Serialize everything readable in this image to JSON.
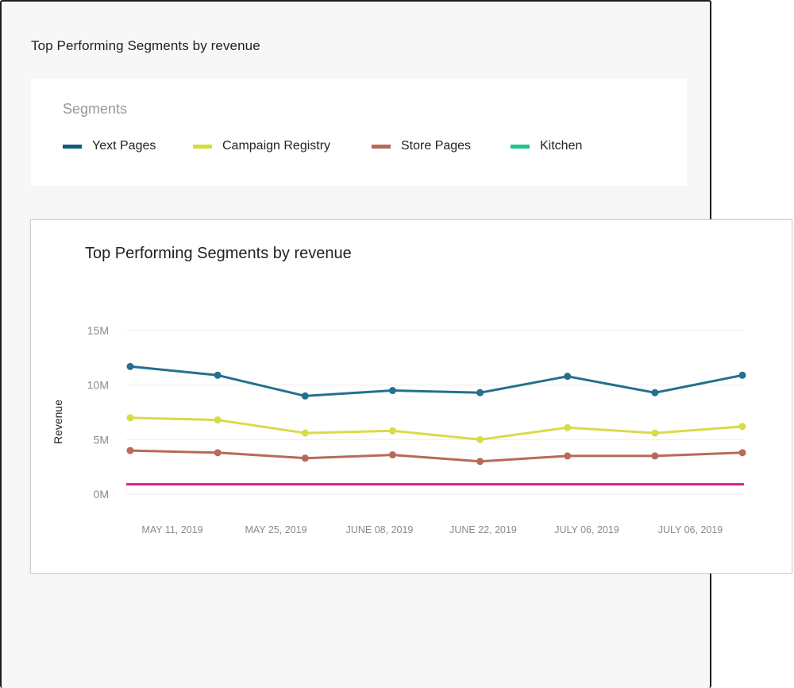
{
  "back_card": {
    "title": "Top Performing Segments by revenue",
    "segments_title": "Segments",
    "legend": [
      {
        "label": "Yext Pages",
        "color": "#0f5c7a"
      },
      {
        "label": "Campaign Registry",
        "color": "#d9da37"
      },
      {
        "label": "Store Pages",
        "color": "#b86a55"
      },
      {
        "label": "Kitchen",
        "color": "#1fc48f"
      }
    ]
  },
  "chart_data": {
    "type": "line",
    "title": "Top Performing Segments by revenue",
    "xlabel": "",
    "ylabel": "Revenue",
    "ylim": [
      0,
      15
    ],
    "y_ticks": [
      "0M",
      "5M",
      "10M",
      "15M"
    ],
    "x_tick_labels": [
      "MAY 11, 2019",
      "MAY 25, 2019",
      "JUNE 08, 2019",
      "JUNE 22, 2019",
      "JULY 06, 2019",
      "JULY 06, 2019"
    ],
    "grid": true,
    "series": [
      {
        "color": "#23708f",
        "values": [
          11.7,
          10.9,
          9.0,
          9.5,
          9.3,
          10.8,
          9.3,
          10.9
        ],
        "markers": true
      },
      {
        "color": "#dada4a",
        "values": [
          7.0,
          6.8,
          5.6,
          5.8,
          5.0,
          6.1,
          5.6,
          6.2
        ],
        "markers": true
      },
      {
        "color": "#b86a58",
        "values": [
          4.0,
          3.8,
          3.3,
          3.6,
          3.0,
          3.5,
          3.5,
          3.8
        ],
        "markers": true
      },
      {
        "color": "#d4228e",
        "values": [
          0.9,
          0.9,
          0.9,
          0.9,
          0.9,
          0.9,
          0.9,
          0.9
        ],
        "markers": false
      }
    ]
  }
}
